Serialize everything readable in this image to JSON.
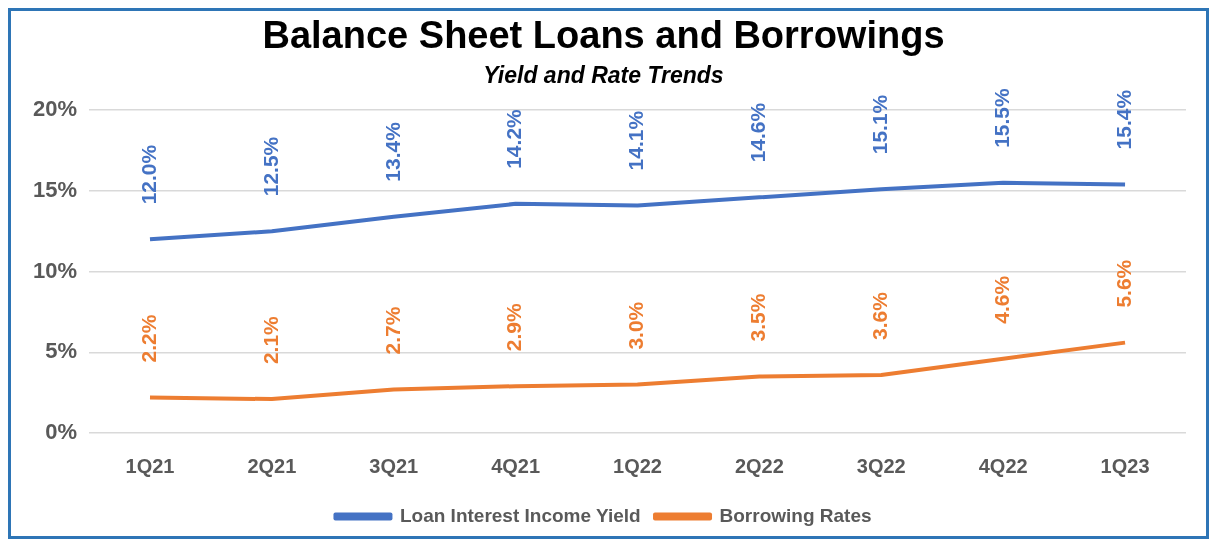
{
  "chart_data": {
    "type": "line",
    "title": "Balance Sheet Loans and Borrowings",
    "subtitle": "Yield and Rate Trends",
    "categories": [
      "1Q21",
      "2Q21",
      "3Q21",
      "4Q21",
      "1Q22",
      "2Q22",
      "3Q22",
      "4Q22",
      "1Q23"
    ],
    "series": [
      {
        "name": "Loan Interest Income Yield",
        "color": "#4472c4",
        "values": [
          12.0,
          12.5,
          13.4,
          14.2,
          14.1,
          14.6,
          15.1,
          15.5,
          15.4
        ],
        "value_labels": [
          "12.0%",
          "12.5%",
          "13.4%",
          "14.2%",
          "14.1%",
          "14.6%",
          "15.1%",
          "15.5%",
          "15.4%"
        ]
      },
      {
        "name": "Borrowing Rates",
        "color": "#ed7d31",
        "values": [
          2.2,
          2.1,
          2.7,
          2.9,
          3.0,
          3.5,
          3.6,
          4.6,
          5.6
        ],
        "value_labels": [
          "2.2%",
          "2.1%",
          "2.7%",
          "2.9%",
          "3.0%",
          "3.5%",
          "3.6%",
          "4.6%",
          "5.6%"
        ]
      }
    ],
    "ylim": [
      0,
      20
    ],
    "yticks": [
      {
        "value": 0,
        "label": "0%"
      },
      {
        "value": 5,
        "label": "5%"
      },
      {
        "value": 10,
        "label": "10%"
      },
      {
        "value": 15,
        "label": "15%"
      },
      {
        "value": 20,
        "label": "20%"
      }
    ],
    "grid": "y",
    "legend": "bottom",
    "marker": "none",
    "line_style": "solid"
  }
}
